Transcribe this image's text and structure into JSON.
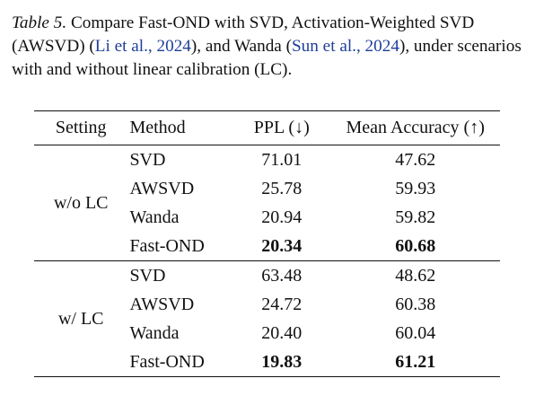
{
  "caption": {
    "label": "Table 5.",
    "text_1": " Compare Fast-OND with SVD, Activation-Weighted SVD (AWSVD) (",
    "cite_1": "Li et al., 2024",
    "text_2": "), and Wanda (",
    "cite_2": "Sun et al., 2024",
    "text_3": "), under scenarios with and without linear calibration (LC)."
  },
  "table": {
    "headers": {
      "setting": "Setting",
      "method": "Method",
      "ppl": "PPL (↓)",
      "acc": "Mean Accuracy (↑)"
    },
    "groups": [
      {
        "setting": "w/o LC",
        "rows": [
          {
            "method": "SVD",
            "ppl": "71.01",
            "acc": "47.62"
          },
          {
            "method": "AWSVD",
            "ppl": "25.78",
            "acc": "59.93"
          },
          {
            "method": "Wanda",
            "ppl": "20.94",
            "acc": "59.82"
          },
          {
            "method": "Fast-OND",
            "ppl": "20.34",
            "acc": "60.68"
          }
        ]
      },
      {
        "setting": "w/ LC",
        "rows": [
          {
            "method": "SVD",
            "ppl": "63.48",
            "acc": "48.62"
          },
          {
            "method": "AWSVD",
            "ppl": "24.72",
            "acc": "60.38"
          },
          {
            "method": "Wanda",
            "ppl": "20.40",
            "acc": "60.04"
          },
          {
            "method": "Fast-OND",
            "ppl": "19.83",
            "acc": "61.21"
          }
        ]
      }
    ]
  }
}
